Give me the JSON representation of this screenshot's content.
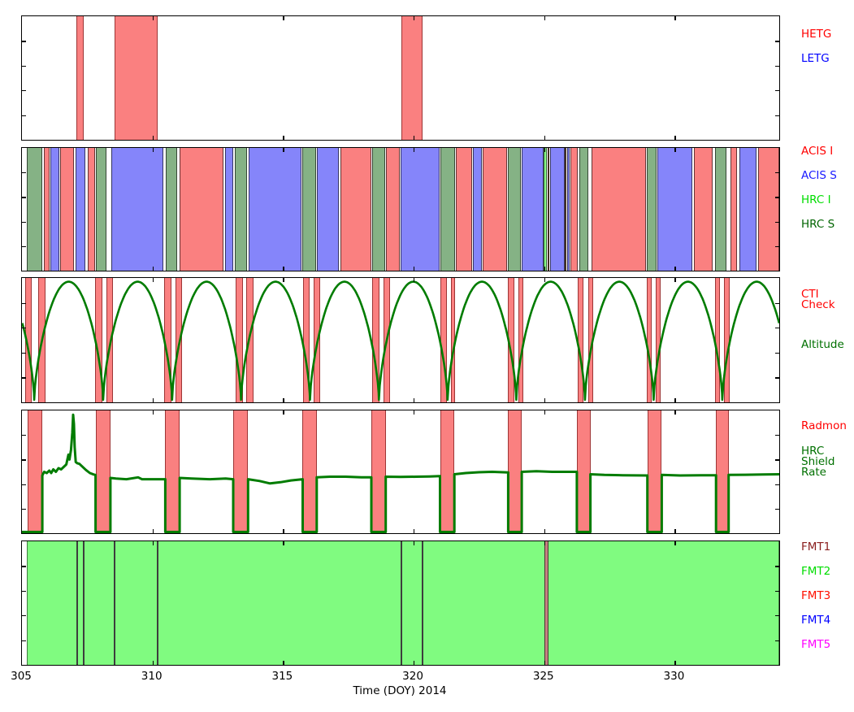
{
  "figure": {
    "xlabel": "Time (DOY) 2014",
    "x_ticks": [
      305,
      310,
      315,
      320,
      325,
      330
    ],
    "x_range": [
      305,
      334
    ]
  },
  "colors": {
    "HETG": "#fa8080",
    "LETG": "#8585fa",
    "ACIS I": "#fa8080",
    "ACIS S": "#8585fa",
    "HRC I": "#86fa86",
    "HRC S": "#85b285",
    "overlap": "#b07a58",
    "CTI": "#fa8080",
    "Radmon": "#fa8080",
    "FMT2": "#80fb80",
    "FMT1": "#c58080",
    "event": "#3d3d3d",
    "curve_green": "#007c00",
    "legend_red": "#ff0000",
    "legend_blue": "#0000ff",
    "legend_bright_green": "#00dd00",
    "legend_dark_green": "#006400",
    "legend_green": "#007000",
    "legend_maroon": "#8b2020",
    "legend_magenta": "#ff00ff"
  },
  "legends": {
    "panel1": [
      {
        "label": "HETG",
        "color": "#ff0000"
      },
      {
        "label": "LETG",
        "color": "#0000ff"
      }
    ],
    "panel2": [
      {
        "label": "ACIS I",
        "color": "#ff0000"
      },
      {
        "label": "ACIS S",
        "color": "#1a1aff"
      },
      {
        "label": "HRC I",
        "color": "#00dd00"
      },
      {
        "label": "HRC S",
        "color": "#006400"
      }
    ],
    "panel3": [
      {
        "label": "CTI\nCheck",
        "color": "#ff0000"
      },
      {
        "label": "Altitude",
        "color": "#007000"
      }
    ],
    "panel4": [
      {
        "label": "Radmon",
        "color": "#ff0000"
      },
      {
        "label": "HRC\nShield\nRate",
        "color": "#007000"
      }
    ],
    "panel5": [
      {
        "label": "FMT1",
        "color": "#8b2020"
      },
      {
        "label": "FMT2",
        "color": "#00dd00"
      },
      {
        "label": "FMT3",
        "color": "#ff1000"
      },
      {
        "label": "FMT4",
        "color": "#0000ff"
      },
      {
        "label": "FMT5",
        "color": "#ff00ff"
      }
    ]
  },
  "chart_data": [
    {
      "type": "timeline-bands",
      "panel": "gratings",
      "bands": [
        [
          "HETG",
          307.08,
          307.36
        ],
        [
          "HETG",
          308.55,
          310.19
        ],
        [
          "HETG",
          319.52,
          320.35
        ]
      ]
    },
    {
      "type": "timeline-bands",
      "panel": "instruments",
      "bands": [
        [
          "HRC S",
          305.19,
          305.78
        ],
        [
          "ACIS I",
          305.83,
          306.07
        ],
        [
          "ACIS S",
          306.1,
          306.42
        ],
        [
          "ACIS I",
          306.45,
          306.99
        ],
        [
          "ACIS S",
          307.06,
          307.44
        ],
        [
          "ACIS I",
          307.51,
          307.79
        ],
        [
          "HRC S",
          307.84,
          308.25
        ],
        [
          "ACIS S",
          308.41,
          310.43
        ],
        [
          "HRC S",
          310.51,
          310.95
        ],
        [
          "ACIS I",
          311.05,
          312.73
        ],
        [
          "ACIS S",
          312.78,
          313.09
        ],
        [
          "HRC S",
          313.14,
          313.61
        ],
        [
          "ACIS S",
          313.68,
          315.7
        ],
        [
          "HRC S",
          315.74,
          316.26
        ],
        [
          "ACIS S",
          316.31,
          317.12
        ],
        [
          "ACIS I",
          317.19,
          318.38
        ],
        [
          "HRC S",
          318.41,
          318.9
        ],
        [
          "ACIS I",
          318.94,
          319.46
        ],
        [
          "ACIS S",
          319.51,
          320.99
        ],
        [
          "HRC S",
          321.02,
          321.59
        ],
        [
          "ACIS I",
          321.63,
          322.25
        ],
        [
          "ACIS S",
          322.28,
          322.62
        ],
        [
          "ACIS I",
          322.64,
          323.57
        ],
        [
          "HRC S",
          323.61,
          324.11
        ],
        [
          "ACIS S",
          324.15,
          324.97
        ],
        [
          "HRC I",
          324.99,
          325.09
        ],
        [
          "overlap",
          325.12,
          325.19
        ],
        [
          "ACIS S",
          325.22,
          325.78
        ],
        [
          "overlap",
          325.8,
          325.85
        ],
        [
          "ACIS S",
          325.87,
          325.96
        ],
        [
          "ACIS I",
          325.99,
          326.29
        ],
        [
          "HRC S",
          326.33,
          326.69
        ],
        [
          "ACIS I",
          326.82,
          328.9
        ],
        [
          "HRC S",
          328.92,
          329.3
        ],
        [
          "ACIS S",
          329.33,
          330.67
        ],
        [
          "ACIS I",
          330.72,
          331.46
        ],
        [
          "HRC S",
          331.54,
          331.98
        ],
        [
          "ACIS I",
          332.13,
          332.39
        ],
        [
          "ACIS S",
          332.48,
          333.12
        ],
        [
          "ACIS I",
          333.18,
          334.0
        ]
      ]
    },
    {
      "type": "timeline-bands+line",
      "panel": "cti-altitude",
      "cti_bands": [
        [
          305.13,
          305.37
        ],
        [
          305.63,
          305.91
        ],
        [
          307.8,
          308.08
        ],
        [
          308.23,
          308.49
        ],
        [
          310.45,
          310.73
        ],
        [
          310.87,
          311.13
        ],
        [
          313.19,
          313.47
        ],
        [
          313.6,
          313.86
        ],
        [
          315.77,
          316.03
        ],
        [
          316.16,
          316.42
        ],
        [
          318.41,
          318.69
        ],
        [
          318.84,
          319.11
        ],
        [
          321.01,
          321.28
        ],
        [
          321.42,
          321.59
        ],
        [
          323.62,
          323.86
        ],
        [
          324.02,
          324.19
        ],
        [
          326.28,
          326.49
        ],
        [
          326.7,
          326.87
        ],
        [
          328.93,
          329.13
        ],
        [
          329.28,
          329.47
        ],
        [
          331.54,
          331.72
        ],
        [
          331.88,
          332.09
        ]
      ],
      "altitude": {
        "name": "Altitude",
        "perigee_times": [
          302.83,
          305.47,
          308.11,
          310.75,
          313.39,
          316.03,
          318.67,
          321.3,
          323.93,
          326.56,
          329.19,
          331.82,
          334.45
        ],
        "normalized_peak": 0.97,
        "normalized_min": 0.02,
        "shape": "abs-sine^0.65"
      }
    },
    {
      "type": "timeline-bands+line",
      "panel": "radmon-shield",
      "radmon_bands": [
        [
          305.22,
          305.78
        ],
        [
          307.82,
          308.39
        ],
        [
          310.49,
          311.04
        ],
        [
          313.09,
          313.66
        ],
        [
          315.75,
          316.29
        ],
        [
          318.38,
          318.93
        ],
        [
          321.01,
          321.56
        ],
        [
          323.62,
          324.14
        ],
        [
          326.25,
          326.77
        ],
        [
          328.95,
          329.5
        ],
        [
          331.58,
          332.06
        ]
      ],
      "shield_rate_points": [
        [
          305.0,
          0
        ],
        [
          305.78,
          0
        ],
        [
          305.78,
          0.47
        ],
        [
          305.85,
          0.5
        ],
        [
          305.95,
          0.49
        ],
        [
          306.05,
          0.51
        ],
        [
          306.12,
          0.49
        ],
        [
          306.2,
          0.52
        ],
        [
          306.3,
          0.5
        ],
        [
          306.4,
          0.53
        ],
        [
          306.5,
          0.52
        ],
        [
          306.6,
          0.54
        ],
        [
          306.7,
          0.56
        ],
        [
          306.78,
          0.64
        ],
        [
          306.82,
          0.6
        ],
        [
          306.88,
          0.68
        ],
        [
          306.93,
          0.82
        ],
        [
          306.96,
          0.965
        ],
        [
          306.99,
          0.89
        ],
        [
          307.02,
          0.7
        ],
        [
          307.06,
          0.58
        ],
        [
          307.12,
          0.57
        ],
        [
          307.2,
          0.565
        ],
        [
          307.3,
          0.545
        ],
        [
          307.45,
          0.515
        ],
        [
          307.6,
          0.49
        ],
        [
          307.75,
          0.478
        ],
        [
          307.82,
          0.475
        ],
        [
          307.82,
          0
        ],
        [
          308.39,
          0
        ],
        [
          308.39,
          0.45
        ],
        [
          308.6,
          0.445
        ],
        [
          309.0,
          0.44
        ],
        [
          309.45,
          0.455
        ],
        [
          309.6,
          0.44
        ],
        [
          310.1,
          0.44
        ],
        [
          310.49,
          0.44
        ],
        [
          310.49,
          0
        ],
        [
          311.04,
          0
        ],
        [
          311.04,
          0.45
        ],
        [
          311.5,
          0.445
        ],
        [
          312.2,
          0.44
        ],
        [
          312.8,
          0.445
        ],
        [
          313.09,
          0.44
        ],
        [
          313.09,
          0
        ],
        [
          313.66,
          0
        ],
        [
          313.66,
          0.44
        ],
        [
          314.1,
          0.425
        ],
        [
          314.5,
          0.405
        ],
        [
          314.9,
          0.415
        ],
        [
          315.3,
          0.43
        ],
        [
          315.75,
          0.44
        ],
        [
          315.75,
          0
        ],
        [
          316.29,
          0
        ],
        [
          316.29,
          0.455
        ],
        [
          316.8,
          0.46
        ],
        [
          317.4,
          0.46
        ],
        [
          318.0,
          0.455
        ],
        [
          318.38,
          0.455
        ],
        [
          318.38,
          0
        ],
        [
          318.93,
          0
        ],
        [
          318.93,
          0.46
        ],
        [
          319.5,
          0.458
        ],
        [
          320.1,
          0.46
        ],
        [
          320.6,
          0.462
        ],
        [
          321.01,
          0.465
        ],
        [
          321.01,
          0
        ],
        [
          321.56,
          0
        ],
        [
          321.56,
          0.48
        ],
        [
          322.0,
          0.49
        ],
        [
          322.5,
          0.497
        ],
        [
          323.0,
          0.5
        ],
        [
          323.62,
          0.495
        ],
        [
          323.62,
          0
        ],
        [
          324.14,
          0
        ],
        [
          324.14,
          0.5
        ],
        [
          324.7,
          0.505
        ],
        [
          325.3,
          0.5
        ],
        [
          325.9,
          0.5
        ],
        [
          326.25,
          0.5
        ],
        [
          326.25,
          0
        ],
        [
          326.77,
          0
        ],
        [
          326.77,
          0.48
        ],
        [
          327.3,
          0.475
        ],
        [
          328.0,
          0.472
        ],
        [
          328.95,
          0.47
        ],
        [
          328.95,
          0
        ],
        [
          329.5,
          0
        ],
        [
          329.5,
          0.475
        ],
        [
          330.2,
          0.47
        ],
        [
          331.0,
          0.472
        ],
        [
          331.58,
          0.472
        ],
        [
          331.58,
          0
        ],
        [
          332.06,
          0
        ],
        [
          332.06,
          0.475
        ],
        [
          332.7,
          0.476
        ],
        [
          333.4,
          0.478
        ],
        [
          334.0,
          0.48
        ]
      ]
    },
    {
      "type": "timeline-bands",
      "panel": "telemetry-format",
      "background_band": [
        "FMT2",
        305.18,
        334.0
      ],
      "events": [
        [
          "event",
          307.09,
          307.14
        ],
        [
          "event",
          307.34,
          307.39
        ],
        [
          "event",
          308.53,
          308.58
        ],
        [
          "event",
          310.17,
          310.22
        ],
        [
          "event",
          319.5,
          319.55
        ],
        [
          "event",
          320.31,
          320.36
        ]
      ],
      "fmt1_band": [
        "FMT1",
        325.02,
        325.17
      ]
    }
  ]
}
